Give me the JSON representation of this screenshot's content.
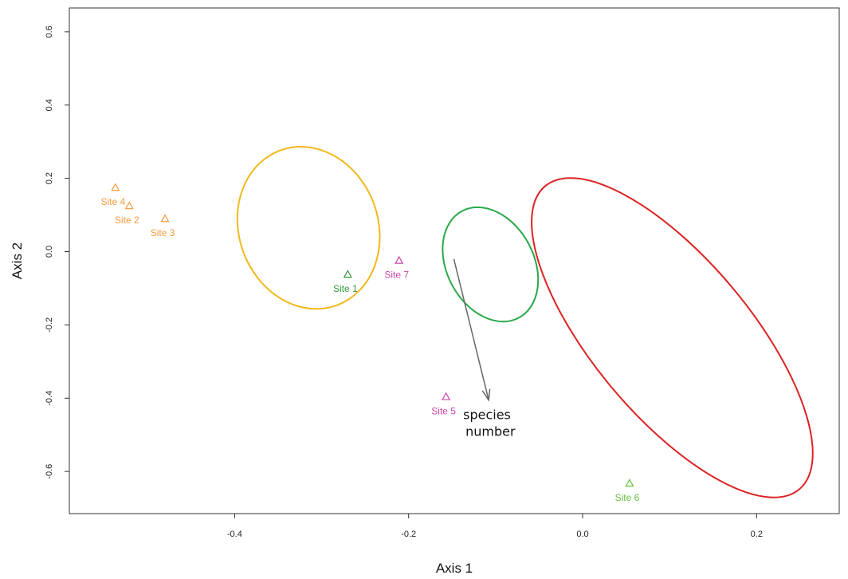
{
  "chart_data": {
    "type": "scatter",
    "xlabel": "Axis 1",
    "ylabel": "Axis 2",
    "xlim": [
      -0.59,
      0.295
    ],
    "ylim": [
      -0.715,
      0.665
    ],
    "xticks": [
      -0.4,
      -0.2,
      0.0,
      0.2
    ],
    "xtick_labels": [
      "-0.4",
      "-0.2",
      "0.0",
      "0.2"
    ],
    "yticks": [
      -0.6,
      -0.4,
      -0.2,
      0.0,
      0.2,
      0.4,
      0.6
    ],
    "ytick_labels": [
      "-0.6",
      "-0.4",
      "-0.2",
      "0.0",
      "0.2",
      "0.4",
      "0.6"
    ],
    "grid": false,
    "points": [
      {
        "label": "Site 4",
        "x": -0.537,
        "y": 0.175,
        "color": "#f59a3c"
      },
      {
        "label": "Site 2",
        "x": -0.521,
        "y": 0.125,
        "color": "#f59a3c"
      },
      {
        "label": "Site 3",
        "x": -0.48,
        "y": 0.09,
        "color": "#f59a3c"
      },
      {
        "label": "Site 1",
        "x": -0.27,
        "y": -0.062,
        "color": "#2e9a3a"
      },
      {
        "label": "Site 7",
        "x": -0.211,
        "y": -0.024,
        "color": "#cc44aa"
      },
      {
        "label": "Site 5",
        "x": -0.157,
        "y": -0.396,
        "color": "#cc44aa"
      },
      {
        "label": "Site 6",
        "x": 0.054,
        "y": -0.632,
        "color": "#66c040"
      }
    ],
    "ellipses": [
      {
        "cx": -0.315,
        "cy": 0.065,
        "rx": 0.08,
        "ry": 0.225,
        "rotation": 20,
        "color": "#f2b81c"
      },
      {
        "cx": -0.106,
        "cy": -0.035,
        "rx": 0.05,
        "ry": 0.165,
        "rotation": 28,
        "color": "#2aa84a"
      },
      {
        "cx": 0.103,
        "cy": -0.235,
        "rx": 0.09,
        "ry": 0.54,
        "rotation": 40,
        "color": "#dd2222"
      }
    ],
    "vectors": [
      {
        "label": "species\nnumber",
        "x0": -0.148,
        "y0": -0.02,
        "x1": -0.108,
        "y1": -0.405,
        "color": "#666666"
      }
    ]
  }
}
